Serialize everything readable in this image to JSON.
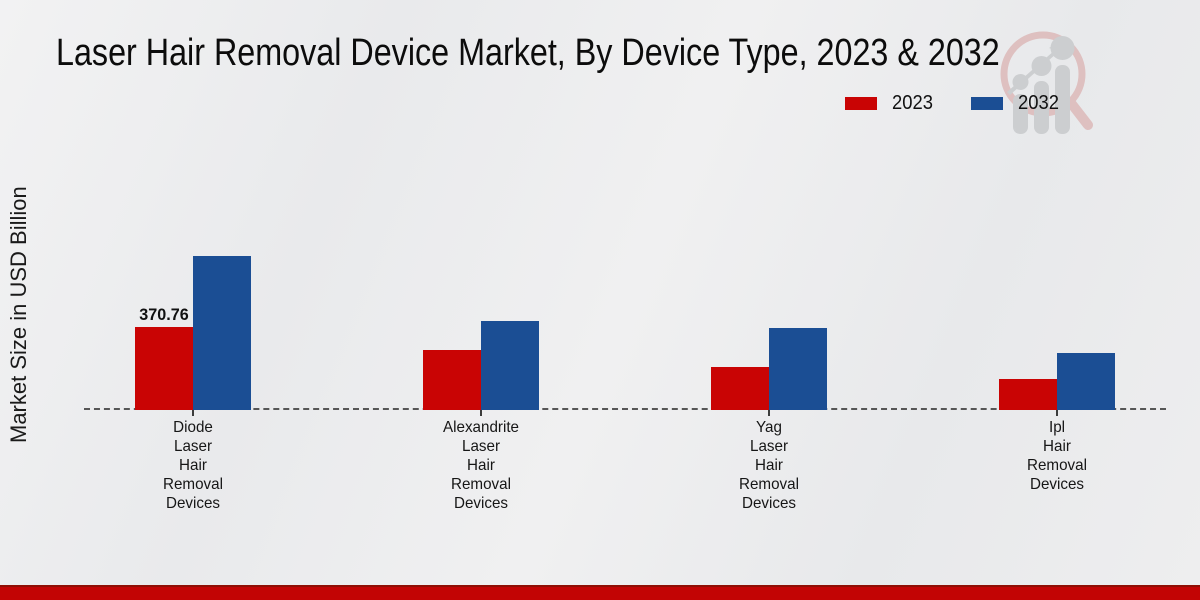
{
  "title": "Laser Hair Removal Device Market, By Device Type, 2023 & 2032",
  "y_axis_label": "Market Size in USD Billion",
  "legend": {
    "items": [
      {
        "label": "2023",
        "color": "#c90404"
      },
      {
        "label": "2032",
        "color": "#1b4e94"
      }
    ]
  },
  "footer": {
    "band_color": "#c20404",
    "band_edge_color": "#8f0f05"
  },
  "branding": {
    "logo_icon": "magnifier-growth-chart-logo"
  },
  "chart_data": {
    "type": "bar",
    "title": "Laser Hair Removal Device Market, By Device Type, 2023 & 2032",
    "xlabel": "",
    "ylabel": "Market Size in USD Billion",
    "categories": [
      "Diode Laser Hair Removal Devices",
      "Alexandrite Laser Hair Removal Devices",
      "Yag Laser Hair Removal Devices",
      "Ipl Hair Removal Devices"
    ],
    "series": [
      {
        "name": "2023",
        "color": "#c90404",
        "values": [
          370.76,
          268,
          192,
          137
        ],
        "value_labels": [
          "370.76",
          "",
          "",
          ""
        ]
      },
      {
        "name": "2032",
        "color": "#1b4e94",
        "values": [
          690,
          398,
          365,
          253
        ],
        "value_labels": [
          "",
          "",
          "",
          ""
        ]
      }
    ],
    "notes": "Only the 2023 Diode bar shows a printed value (370.76); remaining values estimated from bar heights",
    "grid": false,
    "legend_position": "top-right",
    "baseline_style": "dashed"
  }
}
